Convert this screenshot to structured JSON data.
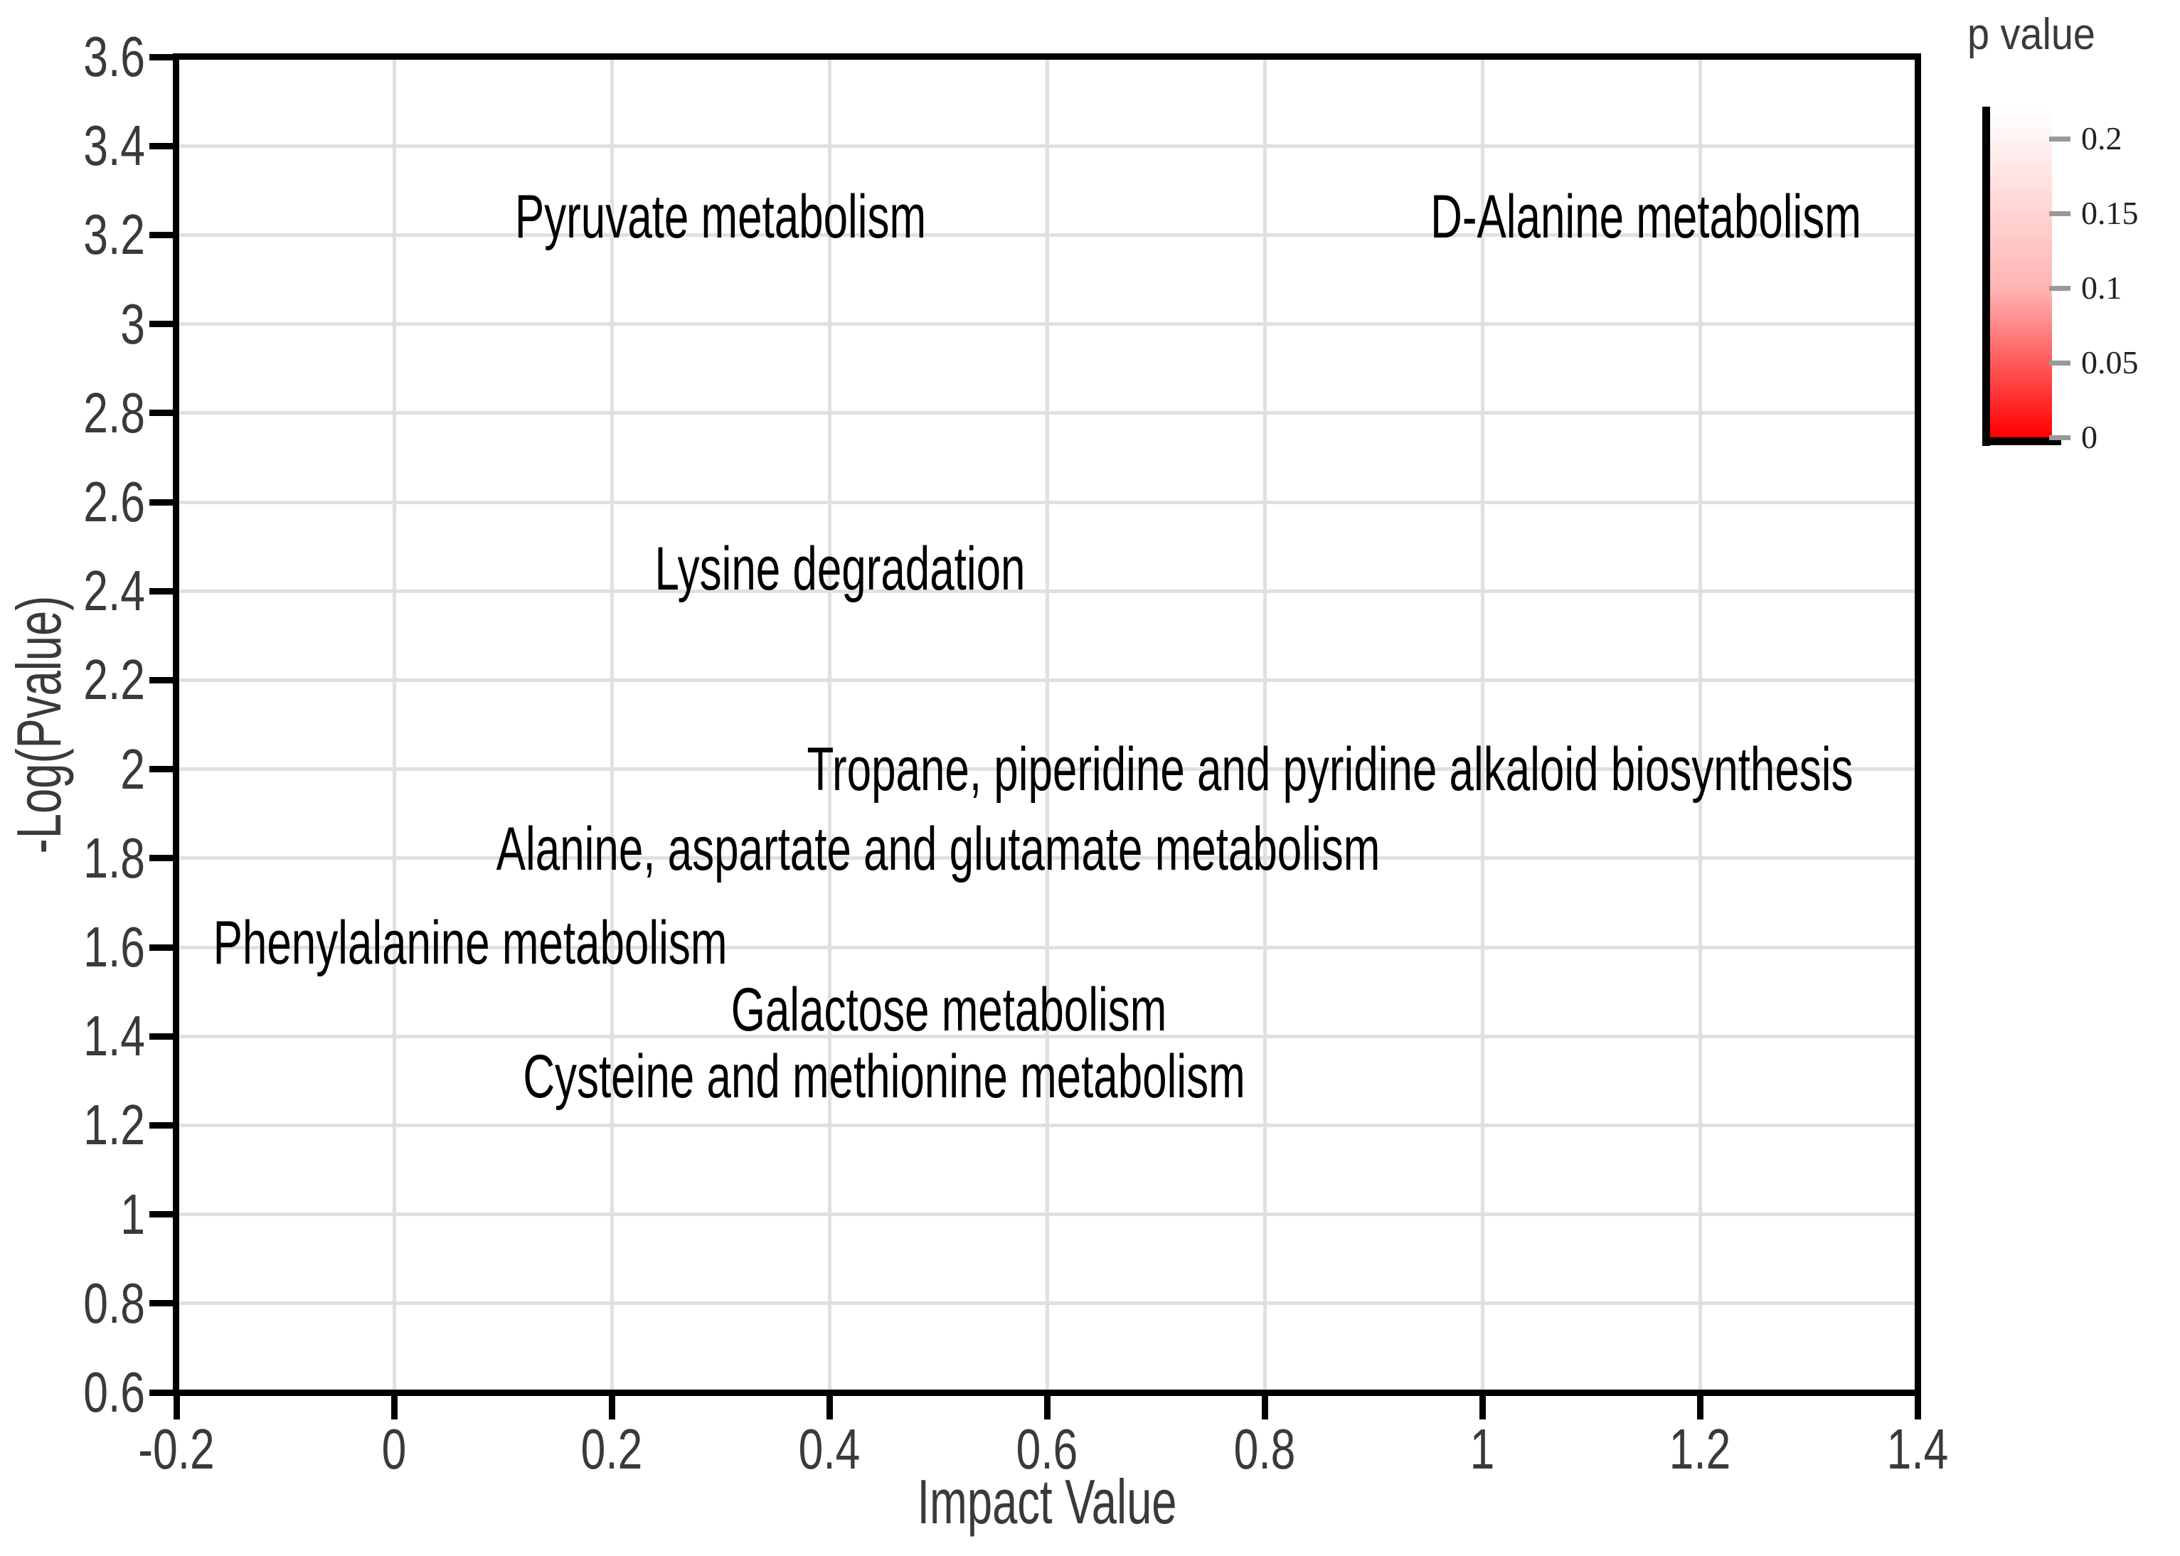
{
  "chart_data": {
    "type": "scatter",
    "title": "",
    "xlabel": "Impact Value",
    "ylabel": "-Log(Pvalue)",
    "xlim": [
      -0.2,
      1.4
    ],
    "ylim": [
      0.6,
      3.6
    ],
    "grid": true,
    "legend_position": "top-right-outside",
    "x_ticks": [
      {
        "label": "-0.2",
        "value": -0.2
      },
      {
        "label": "0",
        "value": 0
      },
      {
        "label": "0.2",
        "value": 0.2
      },
      {
        "label": "0.4",
        "value": 0.4
      },
      {
        "label": "0.6",
        "value": 0.6
      },
      {
        "label": "0.8",
        "value": 0.8
      },
      {
        "label": "1",
        "value": 1.0
      },
      {
        "label": "1.2",
        "value": 1.2
      },
      {
        "label": "1.4",
        "value": 1.4
      }
    ],
    "y_ticks": [
      {
        "label": "0.6",
        "value": 0.6
      },
      {
        "label": "0.8",
        "value": 0.8
      },
      {
        "label": "1",
        "value": 1.0
      },
      {
        "label": "1.2",
        "value": 1.2
      },
      {
        "label": "1.4",
        "value": 1.4
      },
      {
        "label": "1.6",
        "value": 1.6
      },
      {
        "label": "1.8",
        "value": 1.8
      },
      {
        "label": "2",
        "value": 2.0
      },
      {
        "label": "2.2",
        "value": 2.2
      },
      {
        "label": "2.4",
        "value": 2.4
      },
      {
        "label": "2.6",
        "value": 2.6
      },
      {
        "label": "2.8",
        "value": 2.8
      },
      {
        "label": "3",
        "value": 3.0
      },
      {
        "label": "3.2",
        "value": 3.2
      },
      {
        "label": "3.4",
        "value": 3.4
      },
      {
        "label": "3.6",
        "value": 3.6
      }
    ],
    "points": [
      {
        "label": "Pyruvate metabolism",
        "x": 0.3,
        "y": 3.24
      },
      {
        "label": "D-Alanine metabolism",
        "x": 1.15,
        "y": 3.24
      },
      {
        "label": "Lysine degradation",
        "x": 0.41,
        "y": 2.45
      },
      {
        "label": "Tropane, piperidine and pyridine alkaloid biosynthesis",
        "x": 0.86,
        "y": 2.0
      },
      {
        "label": "Alanine, aspartate and glutamate metabolism",
        "x": 0.5,
        "y": 1.82
      },
      {
        "label": "Phenylalanine metabolism",
        "x": 0.07,
        "y": 1.61
      },
      {
        "label": "Galactose metabolism",
        "x": 0.51,
        "y": 1.46
      },
      {
        "label": "Cysteine and methionine metabolism",
        "x": 0.45,
        "y": 1.31
      }
    ],
    "colorbar": {
      "title": "p value",
      "min": 0,
      "max": 0.22,
      "color_low": "#ff0000",
      "color_high": "#ffffff",
      "ticks": [
        {
          "label": "0.2",
          "value": 0.2
        },
        {
          "label": "0.15",
          "value": 0.15
        },
        {
          "label": "0.1",
          "value": 0.1
        },
        {
          "label": "0.05",
          "value": 0.05
        },
        {
          "label": "0",
          "value": 0
        }
      ]
    },
    "colors": {
      "axis": "#000000",
      "tick_label": "#3a3a3a",
      "grid": "#e0e0e0",
      "point_label": "#000000",
      "legend_tick": "#999999",
      "legend_tick_label": "#222222"
    }
  }
}
